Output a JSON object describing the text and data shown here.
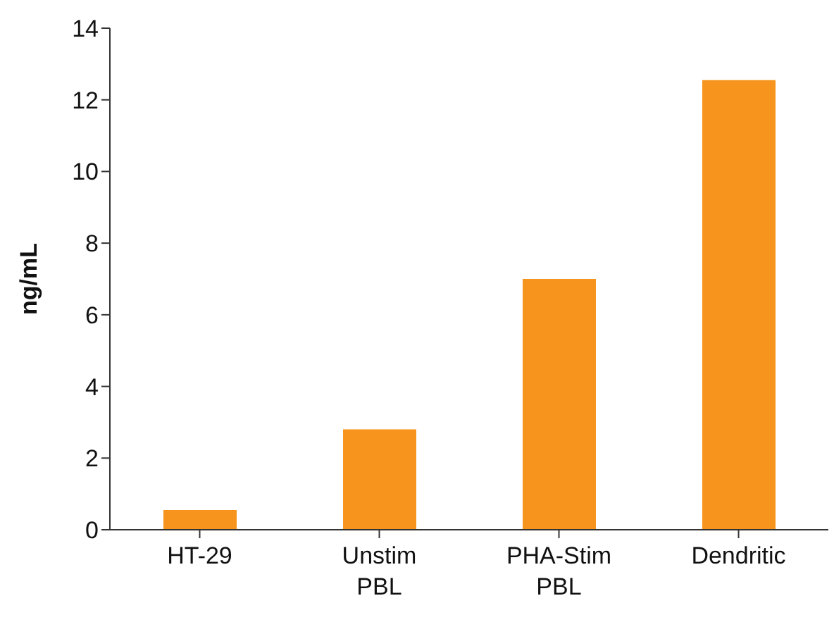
{
  "chart_data": {
    "type": "bar",
    "ylabel": "ng/mL",
    "categories": [
      "HT-29",
      "Unstim PBL",
      "PHA-Stim PBL",
      "Dendritic"
    ],
    "values": [
      0.55,
      2.8,
      7.0,
      12.55
    ],
    "color": "#f7941d",
    "ylim": [
      0,
      14
    ],
    "yticks": [
      0,
      2,
      4,
      6,
      8,
      10,
      12,
      14
    ],
    "grid": false,
    "legend": false
  }
}
